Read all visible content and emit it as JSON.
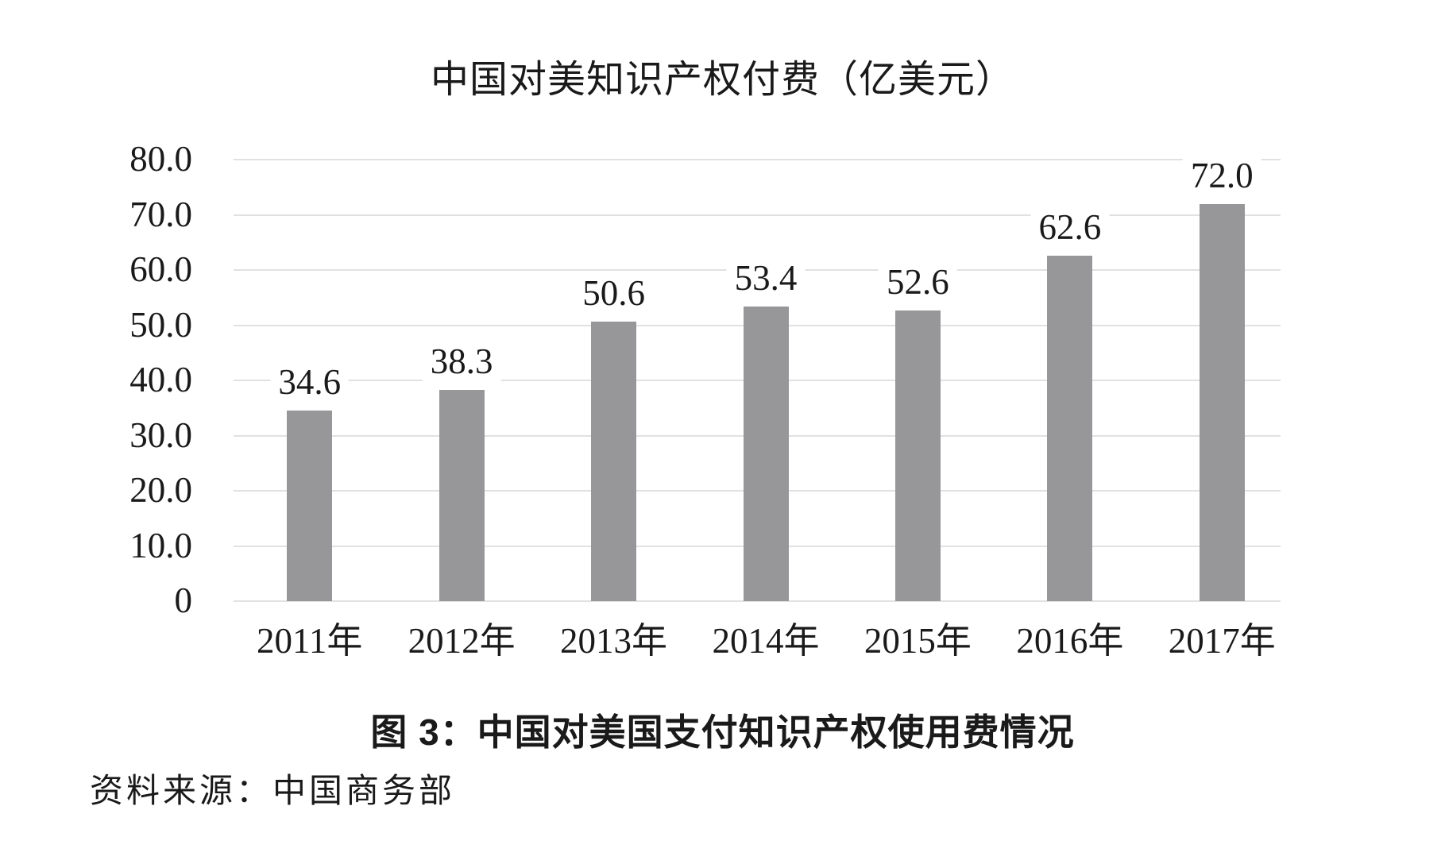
{
  "chart_data": {
    "type": "bar",
    "title": "中国对美知识产权付费（亿美元）",
    "categories": [
      "2011年",
      "2012年",
      "2013年",
      "2014年",
      "2015年",
      "2016年",
      "2017年"
    ],
    "values": [
      34.6,
      38.3,
      50.6,
      53.4,
      52.6,
      62.6,
      72.0
    ],
    "value_labels": [
      "34.6",
      "38.3",
      "50.6",
      "53.4",
      "52.6",
      "62.6",
      "72.0"
    ],
    "xlabel": "",
    "ylabel": "",
    "ylim": [
      0,
      80
    ],
    "ytick_step": 10,
    "ytick_labels": [
      "0",
      "10.0",
      "20.0",
      "30.0",
      "40.0",
      "50.0",
      "60.0",
      "70.0",
      "80.0"
    ],
    "grid": "horizontal",
    "legend": "none",
    "colors": {
      "bar": "#97979a",
      "gridline": "#e1e1e1",
      "text": "#1a1a1a",
      "background": "#ffffff"
    }
  },
  "caption": "图 3：中国对美国支付知识产权使用费情况",
  "source": "资料来源：中国商务部"
}
